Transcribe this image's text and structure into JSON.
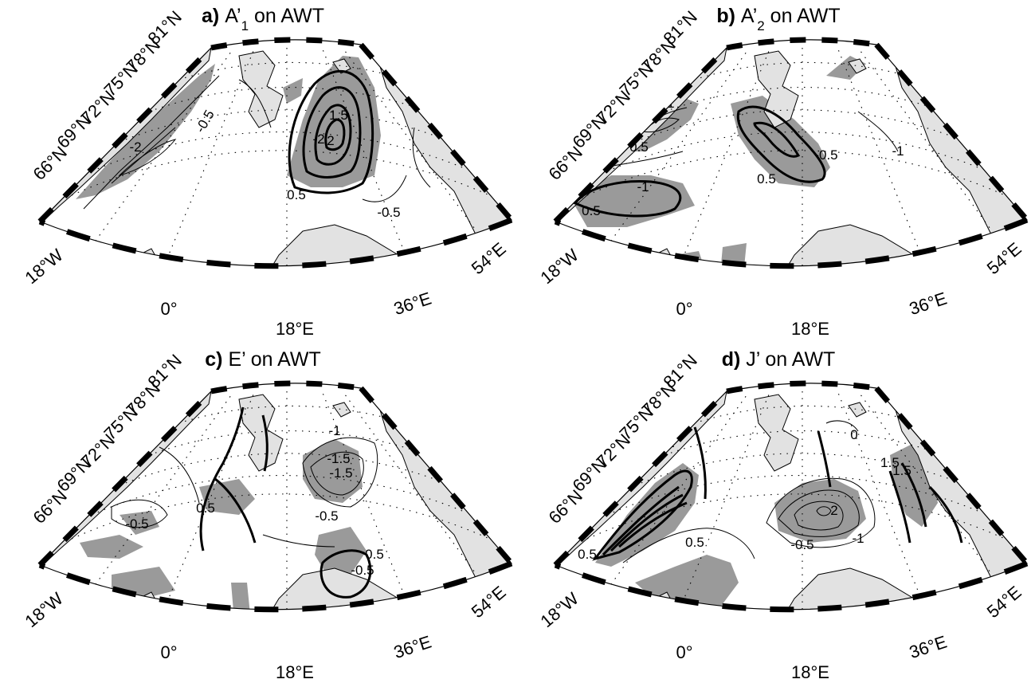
{
  "panels": [
    {
      "id": "a",
      "title_letter": "a)",
      "title_text": "A’1 on AWT",
      "title_main": "A’",
      "title_sub": "1",
      "title_tail": " on AWT",
      "contour_labels": [
        "-0.5",
        "-2",
        "0.5",
        "-0.5",
        "2",
        "1.5",
        "-2"
      ]
    },
    {
      "id": "b",
      "title_letter": "b)",
      "title_text": "A’2 on AWT",
      "title_main": "A’",
      "title_sub": "2",
      "title_tail": " on AWT",
      "contour_labels": [
        "-1",
        "0.5",
        "0.5",
        "-1",
        "0.5",
        "-0.5",
        "-1"
      ]
    },
    {
      "id": "c",
      "title_letter": "c)",
      "title_text": "E’ on AWT",
      "title_main": "E’",
      "title_sub": "",
      "title_tail": " on AWT",
      "contour_labels": [
        "-1",
        "-1.5",
        "-1.5",
        "-0.5",
        "-0.5",
        "0.5",
        "0.5",
        "-0.5"
      ]
    },
    {
      "id": "d",
      "title_letter": "d)",
      "title_text": "J’ on AWT",
      "title_main": "J’",
      "title_sub": "",
      "title_tail": " on AWT",
      "contour_labels": [
        "1",
        "0.5",
        "0.5",
        "2",
        "-1",
        "-0.5",
        "1.5",
        "1.5",
        "0"
      ]
    }
  ],
  "map_labels": {
    "latitudes": [
      "81°N",
      "78°N",
      "75°N",
      "72°N",
      "69°N",
      "66°N"
    ],
    "lon_left": "18°W",
    "lon_bottom": [
      "0°",
      "18°E",
      "36°E"
    ],
    "lon_right": "54°E"
  },
  "colors": {
    "land": "#e2e2e2",
    "shading": "#9a9a9a",
    "contour": "#000000",
    "background": "#ffffff"
  }
}
